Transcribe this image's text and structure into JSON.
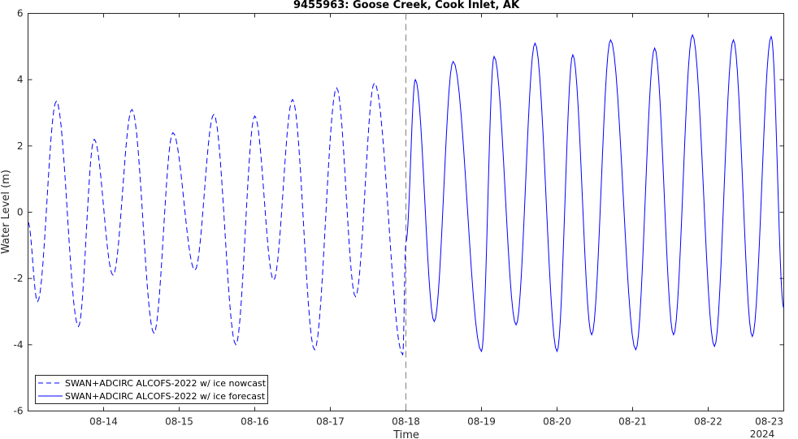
{
  "chart_data": {
    "type": "line",
    "title": "9455963: Goose Creek, Cook Inlet, AK",
    "xlabel": "Time",
    "ylabel": "Water Level (m)",
    "year_label": "2024",
    "ylim": [
      -6,
      6
    ],
    "yticks": [
      -6,
      -4,
      -2,
      0,
      2,
      4,
      6
    ],
    "xlim": [
      "2024-08-13 00:00",
      "2024-08-23 00:00"
    ],
    "xticks": [
      "08-14",
      "08-15",
      "08-16",
      "08-17",
      "08-18",
      "08-19",
      "08-20",
      "08-21",
      "08-22",
      "08-23"
    ],
    "grid": false,
    "legend_position": "bottom-left",
    "divider": {
      "x": "2024-08-18 00:00",
      "style": "dashed",
      "color": "#808080"
    },
    "series": [
      {
        "name": "SWAN+ADCIRC ALCOFS-2022 w/ ice nowcast",
        "line_style": "dashed",
        "color": "#0000ff",
        "points": [
          [
            "08-13 00:00",
            -0.3
          ],
          [
            "08-13 03:00",
            -2.7
          ],
          [
            "08-13 09:00",
            3.35
          ],
          [
            "08-13 16:00",
            -3.45
          ],
          [
            "08-13 21:00",
            2.2
          ],
          [
            "08-14 03:00",
            -1.9
          ],
          [
            "08-14 09:00",
            3.1
          ],
          [
            "08-14 16:00",
            -3.65
          ],
          [
            "08-14 22:00",
            2.4
          ],
          [
            "08-15 05:00",
            -1.75
          ],
          [
            "08-15 11:00",
            2.95
          ],
          [
            "08-15 18:00",
            -4.0
          ],
          [
            "08-16 00:00",
            2.9
          ],
          [
            "08-16 06:00",
            -2.05
          ],
          [
            "08-16 12:00",
            3.4
          ],
          [
            "08-16 19:00",
            -4.15
          ],
          [
            "08-17 02:00",
            3.75
          ],
          [
            "08-17 08:00",
            -2.55
          ],
          [
            "08-17 14:00",
            3.9
          ],
          [
            "08-17 23:00",
            -4.3
          ],
          [
            "08-18 00:00",
            -0.9
          ]
        ]
      },
      {
        "name": "SWAN+ADCIRC ALCOFS-2022 w/ ice forecast",
        "line_style": "solid",
        "color": "#0000ff",
        "points": [
          [
            "08-18 00:00",
            -0.9
          ],
          [
            "08-18 03:00",
            4.0
          ],
          [
            "08-18 09:00",
            -3.3
          ],
          [
            "08-18 15:00",
            4.55
          ],
          [
            "08-19 00:00",
            -4.2
          ],
          [
            "08-19 04:00",
            4.7
          ],
          [
            "08-19 11:00",
            -3.4
          ],
          [
            "08-19 17:00",
            5.1
          ],
          [
            "08-20 00:00",
            -4.2
          ],
          [
            "08-20 05:00",
            4.75
          ],
          [
            "08-20 11:00",
            -3.7
          ],
          [
            "08-20 17:00",
            5.2
          ],
          [
            "08-21 01:00",
            -4.15
          ],
          [
            "08-21 07:00",
            4.95
          ],
          [
            "08-21 13:00",
            -3.7
          ],
          [
            "08-21 19:00",
            5.35
          ],
          [
            "08-22 02:00",
            -4.05
          ],
          [
            "08-22 08:00",
            5.2
          ],
          [
            "08-22 14:00",
            -3.75
          ],
          [
            "08-22 20:00",
            5.3
          ],
          [
            "08-23 00:00",
            -2.9
          ]
        ]
      }
    ]
  }
}
